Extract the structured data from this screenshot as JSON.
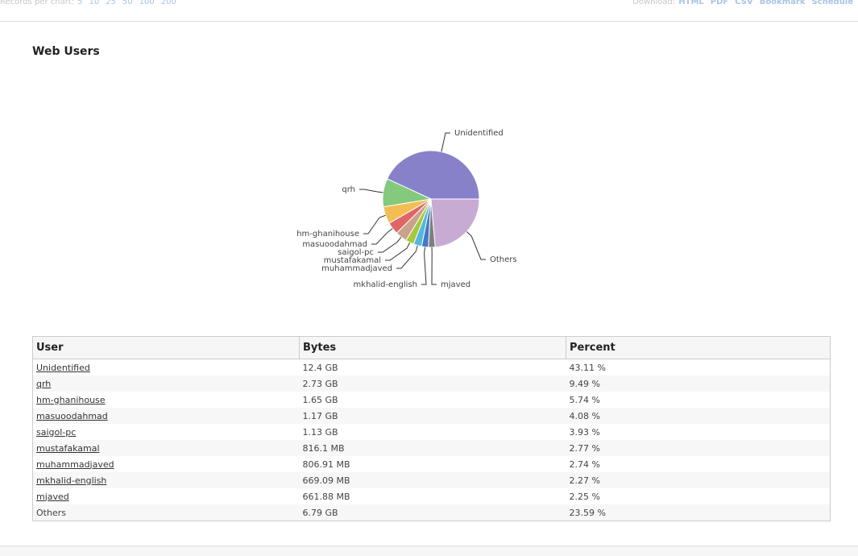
{
  "toolbar": {
    "records_label": "Records per chart:",
    "records_options": [
      "5",
      "10",
      "25",
      "50",
      "100",
      "200"
    ],
    "download_label": "Download:",
    "download_options": [
      "HTML",
      "PDF",
      "CSV",
      "Bookmark",
      "Schedule"
    ]
  },
  "chart_data": {
    "type": "pie",
    "title": "Web Users",
    "categories": [
      "Unidentified",
      "qrh",
      "hm-ghanihouse",
      "masuoodahmad",
      "saigol-pc",
      "mustafakamal",
      "muhammadjaved",
      "mkhalid-english",
      "mjaved",
      "Others"
    ],
    "values": [
      43.11,
      9.49,
      5.74,
      4.08,
      3.93,
      2.77,
      2.74,
      2.27,
      2.25,
      23.59
    ],
    "colors": [
      "#8781c9",
      "#84c97c",
      "#f2be54",
      "#e06666",
      "#c9a28c",
      "#a6c83e",
      "#56b7dd",
      "#3f7ac7",
      "#7f7f7f",
      "#c7abd3"
    ]
  },
  "table": {
    "headers": [
      "User",
      "Bytes",
      "Percent"
    ],
    "rows": [
      [
        "Unidentified",
        "12.4 GB",
        "43.11 %"
      ],
      [
        "qrh",
        "2.73 GB",
        "9.49 %"
      ],
      [
        "hm-ghanihouse",
        "1.65 GB",
        "5.74 %"
      ],
      [
        "masuoodahmad",
        "1.17 GB",
        "4.08 %"
      ],
      [
        "saigol-pc",
        "1.13 GB",
        "3.93 %"
      ],
      [
        "mustafakamal",
        "816.1 MB",
        "2.77 %"
      ],
      [
        "muhammadjaved",
        "806.91 MB",
        "2.74 %"
      ],
      [
        "mkhalid-english",
        "669.09 MB",
        "2.27 %"
      ],
      [
        "mjaved",
        "661.88 MB",
        "2.25 %"
      ],
      [
        "Others",
        "6.79 GB",
        "23.59 %"
      ]
    ]
  }
}
